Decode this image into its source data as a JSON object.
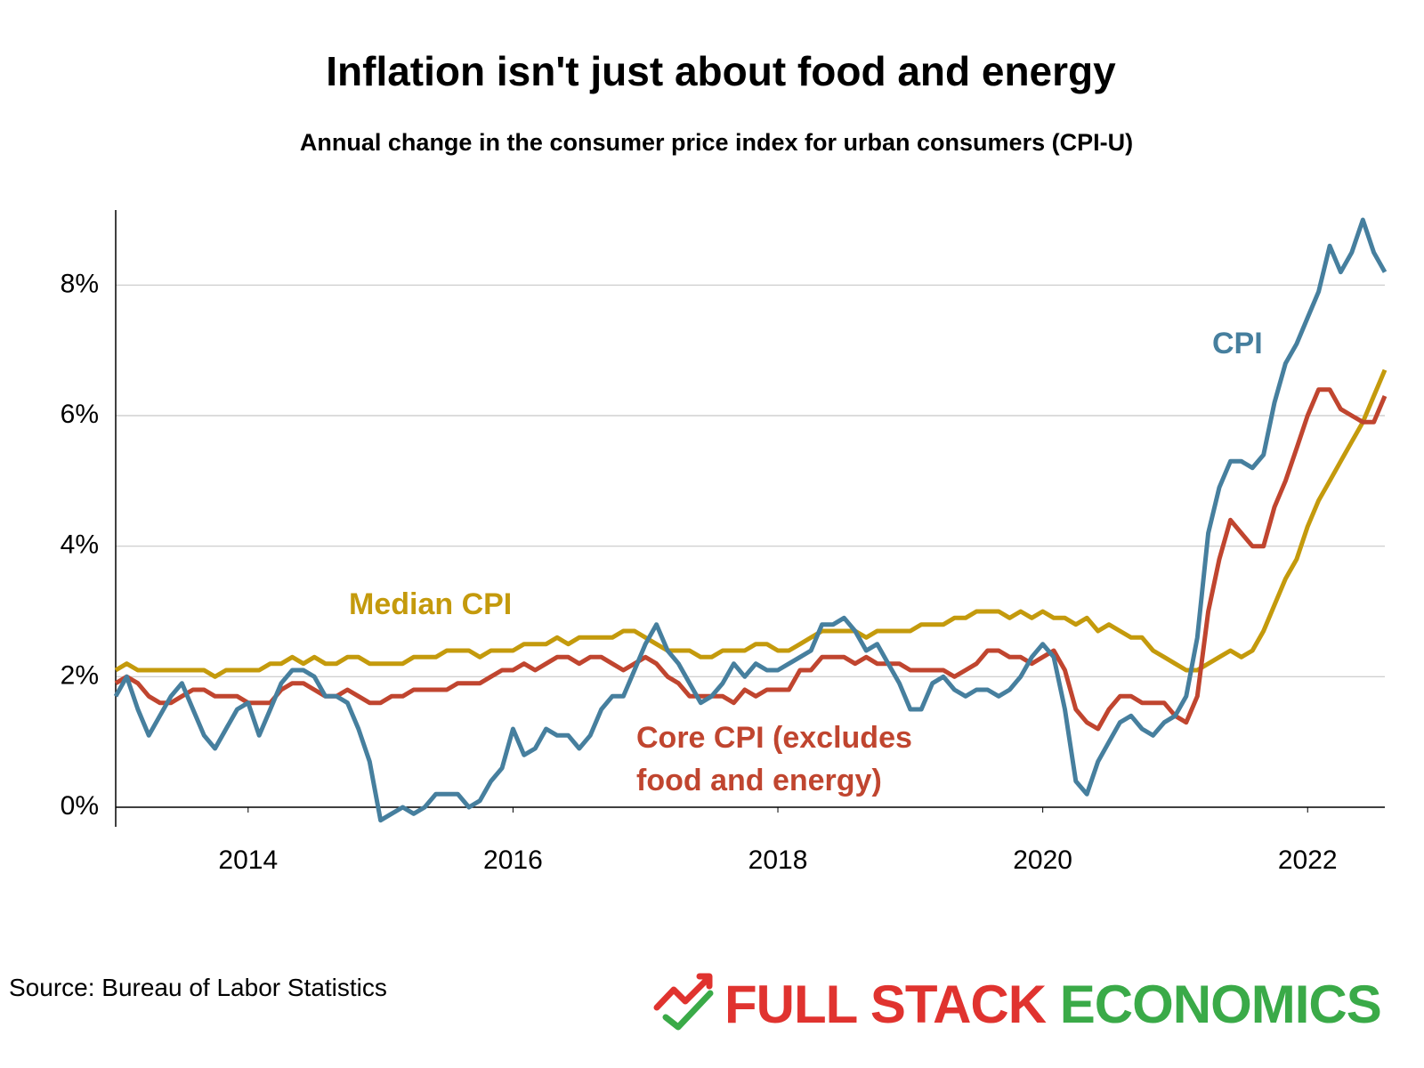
{
  "chart_data": {
    "type": "line",
    "title": "Inflation isn't just about food and energy",
    "subtitle": "Annual change in the consumer price index for urban consumers (CPI-U)",
    "x": [
      2013,
      2013.083,
      2013.167,
      2013.25,
      2013.333,
      2013.417,
      2013.5,
      2013.583,
      2013.667,
      2013.75,
      2013.833,
      2013.917,
      2014,
      2014.083,
      2014.167,
      2014.25,
      2014.333,
      2014.417,
      2014.5,
      2014.583,
      2014.667,
      2014.75,
      2014.833,
      2014.917,
      2015,
      2015.083,
      2015.167,
      2015.25,
      2015.333,
      2015.417,
      2015.5,
      2015.583,
      2015.667,
      2015.75,
      2015.833,
      2015.917,
      2016,
      2016.083,
      2016.167,
      2016.25,
      2016.333,
      2016.417,
      2016.5,
      2016.583,
      2016.667,
      2016.75,
      2016.833,
      2016.917,
      2017,
      2017.083,
      2017.167,
      2017.25,
      2017.333,
      2017.417,
      2017.5,
      2017.583,
      2017.667,
      2017.75,
      2017.833,
      2017.917,
      2018,
      2018.083,
      2018.167,
      2018.25,
      2018.333,
      2018.417,
      2018.5,
      2018.583,
      2018.667,
      2018.75,
      2018.833,
      2018.917,
      2019,
      2019.083,
      2019.167,
      2019.25,
      2019.333,
      2019.417,
      2019.5,
      2019.583,
      2019.667,
      2019.75,
      2019.833,
      2019.917,
      2020,
      2020.083,
      2020.167,
      2020.25,
      2020.333,
      2020.417,
      2020.5,
      2020.583,
      2020.667,
      2020.75,
      2020.833,
      2020.917,
      2021,
      2021.083,
      2021.167,
      2021.25,
      2021.333,
      2021.417,
      2021.5,
      2021.583,
      2021.667,
      2021.75,
      2021.833,
      2021.917,
      2022,
      2022.083,
      2022.167,
      2022.25,
      2022.333,
      2022.417,
      2022.5,
      2022.583
    ],
    "series": [
      {
        "name": "CPI",
        "color": "#467f9e",
        "values": [
          1.7,
          2.0,
          1.5,
          1.1,
          1.4,
          1.7,
          1.9,
          1.5,
          1.1,
          0.9,
          1.2,
          1.5,
          1.6,
          1.1,
          1.5,
          1.9,
          2.1,
          2.1,
          2.0,
          1.7,
          1.7,
          1.6,
          1.2,
          0.7,
          -0.2,
          -0.1,
          0.0,
          -0.1,
          0.0,
          0.2,
          0.2,
          0.2,
          0.0,
          0.1,
          0.4,
          0.6,
          1.2,
          0.8,
          0.9,
          1.2,
          1.1,
          1.1,
          0.9,
          1.1,
          1.5,
          1.7,
          1.7,
          2.1,
          2.5,
          2.8,
          2.4,
          2.2,
          1.9,
          1.6,
          1.7,
          1.9,
          2.2,
          2.0,
          2.2,
          2.1,
          2.1,
          2.2,
          2.3,
          2.4,
          2.8,
          2.8,
          2.9,
          2.7,
          2.4,
          2.5,
          2.2,
          1.9,
          1.5,
          1.5,
          1.9,
          2.0,
          1.8,
          1.7,
          1.8,
          1.8,
          1.7,
          1.8,
          2.0,
          2.3,
          2.5,
          2.3,
          1.5,
          0.4,
          0.2,
          0.7,
          1.0,
          1.3,
          1.4,
          1.2,
          1.1,
          1.3,
          1.4,
          1.7,
          2.6,
          4.2,
          4.9,
          5.3,
          5.3,
          5.2,
          5.4,
          6.2,
          6.8,
          7.1,
          7.5,
          7.9,
          8.6,
          8.2,
          8.5,
          9.0,
          8.5,
          8.2
        ]
      },
      {
        "name": "Core CPI (excludes food and energy)",
        "color": "#c0452f",
        "values": [
          1.9,
          2.0,
          1.9,
          1.7,
          1.6,
          1.6,
          1.7,
          1.8,
          1.8,
          1.7,
          1.7,
          1.7,
          1.6,
          1.6,
          1.6,
          1.8,
          1.9,
          1.9,
          1.8,
          1.7,
          1.7,
          1.8,
          1.7,
          1.6,
          1.6,
          1.7,
          1.7,
          1.8,
          1.8,
          1.8,
          1.8,
          1.9,
          1.9,
          1.9,
          2.0,
          2.1,
          2.1,
          2.2,
          2.1,
          2.2,
          2.3,
          2.3,
          2.2,
          2.3,
          2.3,
          2.2,
          2.1,
          2.2,
          2.3,
          2.2,
          2.0,
          1.9,
          1.7,
          1.7,
          1.7,
          1.7,
          1.6,
          1.8,
          1.7,
          1.8,
          1.8,
          1.8,
          2.1,
          2.1,
          2.3,
          2.3,
          2.3,
          2.2,
          2.3,
          2.2,
          2.2,
          2.2,
          2.1,
          2.1,
          2.1,
          2.1,
          2.0,
          2.1,
          2.2,
          2.4,
          2.4,
          2.3,
          2.3,
          2.2,
          2.3,
          2.4,
          2.1,
          1.5,
          1.3,
          1.2,
          1.5,
          1.7,
          1.7,
          1.6,
          1.6,
          1.6,
          1.4,
          1.3,
          1.7,
          3.0,
          3.8,
          4.4,
          4.2,
          4.0,
          4.0,
          4.6,
          5.0,
          5.5,
          6.0,
          6.4,
          6.4,
          6.1,
          6.0,
          5.9,
          5.9,
          6.3
        ]
      },
      {
        "name": "Median CPI",
        "color": "#c49a0c",
        "values": [
          2.1,
          2.2,
          2.1,
          2.1,
          2.1,
          2.1,
          2.1,
          2.1,
          2.1,
          2.0,
          2.1,
          2.1,
          2.1,
          2.1,
          2.2,
          2.2,
          2.3,
          2.2,
          2.3,
          2.2,
          2.2,
          2.3,
          2.3,
          2.2,
          2.2,
          2.2,
          2.2,
          2.3,
          2.3,
          2.3,
          2.4,
          2.4,
          2.4,
          2.3,
          2.4,
          2.4,
          2.4,
          2.5,
          2.5,
          2.5,
          2.6,
          2.5,
          2.6,
          2.6,
          2.6,
          2.6,
          2.7,
          2.7,
          2.6,
          2.5,
          2.4,
          2.4,
          2.4,
          2.3,
          2.3,
          2.4,
          2.4,
          2.4,
          2.5,
          2.5,
          2.4,
          2.4,
          2.5,
          2.6,
          2.7,
          2.7,
          2.7,
          2.7,
          2.6,
          2.7,
          2.7,
          2.7,
          2.7,
          2.8,
          2.8,
          2.8,
          2.9,
          2.9,
          3.0,
          3.0,
          3.0,
          2.9,
          3.0,
          2.9,
          3.0,
          2.9,
          2.9,
          2.8,
          2.9,
          2.7,
          2.8,
          2.7,
          2.6,
          2.6,
          2.4,
          2.3,
          2.2,
          2.1,
          2.1,
          2.2,
          2.3,
          2.4,
          2.3,
          2.4,
          2.7,
          3.1,
          3.5,
          3.8,
          4.3,
          4.7,
          5.0,
          5.3,
          5.6,
          5.9,
          6.3,
          6.7
        ]
      }
    ],
    "xlim": [
      2013,
      2022.583
    ],
    "xticks": [
      2014,
      2016,
      2018,
      2020,
      2022
    ],
    "ylim": [
      -0.3,
      9.15
    ],
    "yticks": [
      {
        "value": 0,
        "label": "0%"
      },
      {
        "value": 2,
        "label": "2%"
      },
      {
        "value": 4,
        "label": "4%"
      },
      {
        "value": 6,
        "label": "6%"
      },
      {
        "value": 8,
        "label": "8%"
      }
    ],
    "grid": true,
    "source": "Source: Bureau of Labor Statistics",
    "brand": [
      "FULL STACK",
      "ECONOMICS"
    ]
  }
}
